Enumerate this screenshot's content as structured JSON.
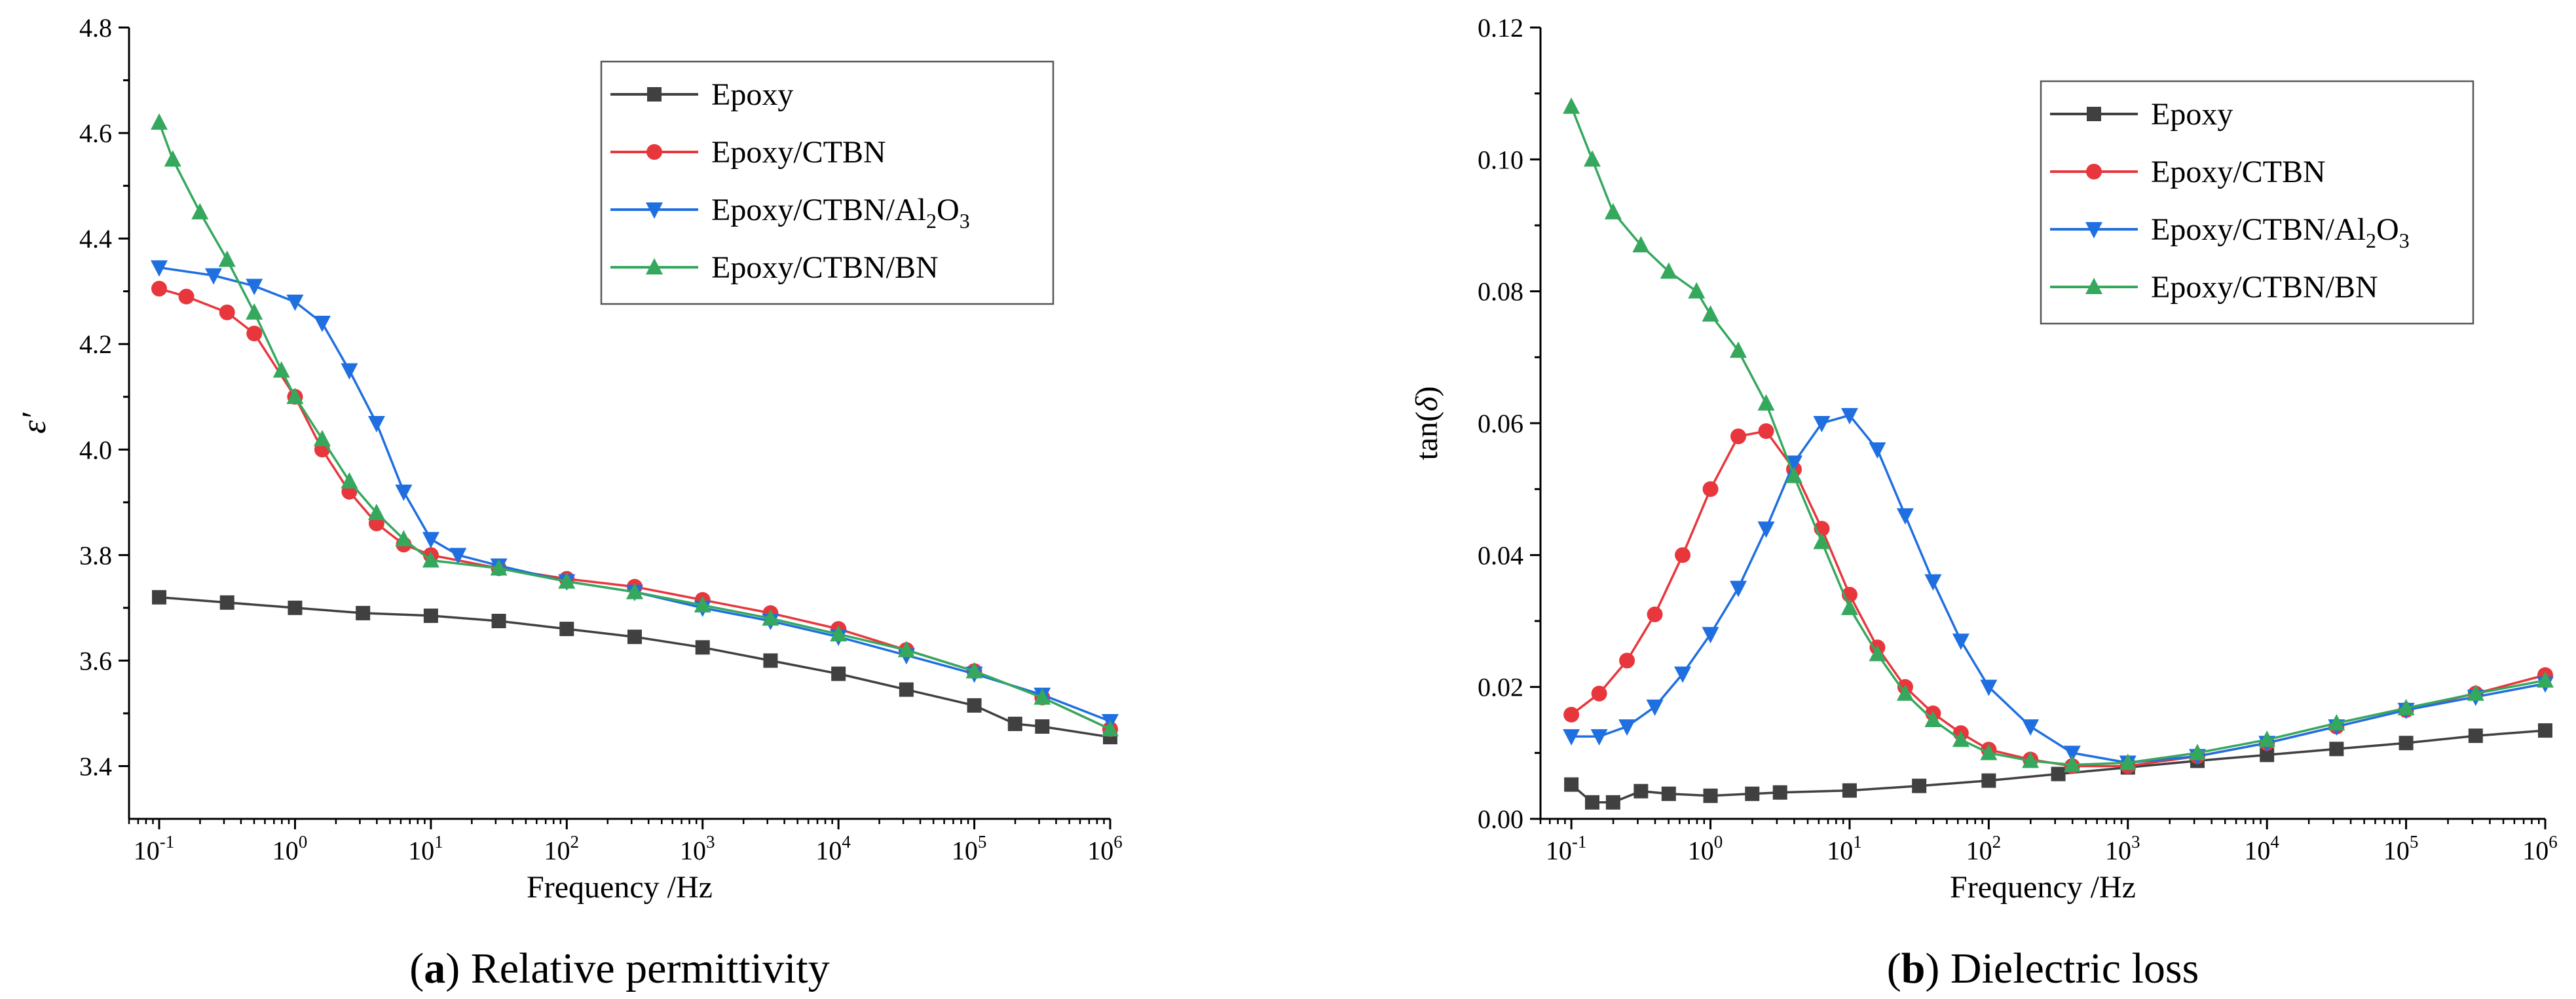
{
  "chart_data": [
    {
      "type": "line",
      "panel_label": "(a)",
      "caption": "Relative permittivity",
      "xlabel": "Frequency /Hz",
      "ylabel": "ε′",
      "xscale": "log",
      "xlim": [
        0.06,
        1000000
      ],
      "ylim": [
        3.3,
        4.8
      ],
      "x_ticks": [
        {
          "exp": "-1",
          "value": 0.1
        },
        {
          "exp": "0",
          "value": 1
        },
        {
          "exp": "1",
          "value": 10
        },
        {
          "exp": "2",
          "value": 100
        },
        {
          "exp": "3",
          "value": 1000
        },
        {
          "exp": "4",
          "value": 10000
        },
        {
          "exp": "5",
          "value": 100000
        },
        {
          "exp": "6",
          "value": 1000000
        }
      ],
      "y_ticks": [
        {
          "label": "3.4",
          "value": 3.4
        },
        {
          "label": "3.6",
          "value": 3.6
        },
        {
          "label": "3.8",
          "value": 3.8
        },
        {
          "label": "4.0",
          "value": 4.0
        },
        {
          "label": "4.2",
          "value": 4.2
        },
        {
          "label": "4.4",
          "value": 4.4
        },
        {
          "label": "4.6",
          "value": 4.6
        },
        {
          "label": "4.8",
          "value": 4.8
        }
      ],
      "legend_position": "top-right",
      "series": [
        {
          "name": "Epoxy",
          "color": "#404040",
          "marker": "square",
          "points": [
            [
              -1,
              3.72
            ],
            [
              -0.5,
              3.71
            ],
            [
              0,
              3.7
            ],
            [
              0.5,
              3.69
            ],
            [
              1,
              3.685
            ],
            [
              1.5,
              3.675
            ],
            [
              2,
              3.66
            ],
            [
              2.5,
              3.645
            ],
            [
              3,
              3.625
            ],
            [
              3.5,
              3.6
            ],
            [
              4,
              3.575
            ],
            [
              4.5,
              3.545
            ],
            [
              5,
              3.515
            ],
            [
              5.3,
              3.48
            ],
            [
              5.5,
              3.475
            ],
            [
              6,
              3.455
            ]
          ]
        },
        {
          "name": "Epoxy/CTBN",
          "color": "#e8363d",
          "marker": "circle",
          "points": [
            [
              -1,
              4.305
            ],
            [
              -0.8,
              4.29
            ],
            [
              -0.5,
              4.26
            ],
            [
              -0.3,
              4.22
            ],
            [
              0,
              4.1
            ],
            [
              0.2,
              4.0
            ],
            [
              0.4,
              3.92
            ],
            [
              0.6,
              3.86
            ],
            [
              0.8,
              3.82
            ],
            [
              1,
              3.8
            ],
            [
              1.5,
              3.775
            ],
            [
              2,
              3.755
            ],
            [
              2.5,
              3.74
            ],
            [
              3,
              3.715
            ],
            [
              3.5,
              3.69
            ],
            [
              4,
              3.66
            ],
            [
              4.5,
              3.62
            ],
            [
              5,
              3.58
            ],
            [
              5.5,
              3.53
            ],
            [
              6,
              3.47
            ]
          ]
        },
        {
          "name": "Epoxy/CTBN/Al2O3",
          "color": "#1f6fe0",
          "marker": "triangle-down",
          "points": [
            [
              -1,
              4.345
            ],
            [
              -0.6,
              4.33
            ],
            [
              -0.3,
              4.31
            ],
            [
              0,
              4.28
            ],
            [
              0.2,
              4.24
            ],
            [
              0.4,
              4.15
            ],
            [
              0.6,
              4.05
            ],
            [
              0.8,
              3.92
            ],
            [
              1,
              3.83
            ],
            [
              1.2,
              3.8
            ],
            [
              1.5,
              3.78
            ],
            [
              2,
              3.75
            ],
            [
              2.5,
              3.73
            ],
            [
              3,
              3.7
            ],
            [
              3.5,
              3.675
            ],
            [
              4,
              3.645
            ],
            [
              4.5,
              3.61
            ],
            [
              5,
              3.575
            ],
            [
              5.5,
              3.535
            ],
            [
              6,
              3.485
            ]
          ]
        },
        {
          "name": "Epoxy/CTBN/BN",
          "color": "#35a85e",
          "marker": "triangle-up",
          "points": [
            [
              -1,
              4.62
            ],
            [
              -0.9,
              4.55
            ],
            [
              -0.7,
              4.45
            ],
            [
              -0.5,
              4.36
            ],
            [
              -0.3,
              4.26
            ],
            [
              -0.1,
              4.15
            ],
            [
              0,
              4.1
            ],
            [
              0.2,
              4.02
            ],
            [
              0.4,
              3.94
            ],
            [
              0.6,
              3.88
            ],
            [
              0.8,
              3.83
            ],
            [
              1,
              3.79
            ],
            [
              1.5,
              3.775
            ],
            [
              2,
              3.75
            ],
            [
              2.5,
              3.73
            ],
            [
              3,
              3.705
            ],
            [
              3.5,
              3.68
            ],
            [
              4,
              3.65
            ],
            [
              4.5,
              3.62
            ],
            [
              5,
              3.58
            ],
            [
              5.5,
              3.53
            ],
            [
              6,
              3.47
            ]
          ]
        }
      ]
    },
    {
      "type": "line",
      "panel_label": "(b)",
      "caption": "Dielectric loss",
      "xlabel": "Frequency /Hz",
      "ylabel": "tan(δ)",
      "xscale": "log",
      "xlim": [
        0.06,
        1000000
      ],
      "ylim": [
        0,
        0.12
      ],
      "x_ticks": [
        {
          "exp": "-1",
          "value": 0.1
        },
        {
          "exp": "0",
          "value": 1
        },
        {
          "exp": "1",
          "value": 10
        },
        {
          "exp": "2",
          "value": 100
        },
        {
          "exp": "3",
          "value": 1000
        },
        {
          "exp": "4",
          "value": 10000
        },
        {
          "exp": "5",
          "value": 100000
        },
        {
          "exp": "6",
          "value": 1000000
        }
      ],
      "y_ticks": [
        {
          "label": "0.00",
          "value": 0
        },
        {
          "label": "0.02",
          "value": 0.02
        },
        {
          "label": "0.04",
          "value": 0.04
        },
        {
          "label": "0.06",
          "value": 0.06
        },
        {
          "label": "0.08",
          "value": 0.08
        },
        {
          "label": "0.10",
          "value": 0.1
        },
        {
          "label": "0.12",
          "value": 0.12
        }
      ],
      "legend_position": "top-right",
      "series": [
        {
          "name": "Epoxy",
          "color": "#404040",
          "marker": "square",
          "points": [
            [
              -1,
              0.0052
            ],
            [
              -0.85,
              0.0025
            ],
            [
              -0.7,
              0.0025
            ],
            [
              -0.5,
              0.0042
            ],
            [
              -0.3,
              0.0038
            ],
            [
              0,
              0.0035
            ],
            [
              0.3,
              0.0038
            ],
            [
              0.5,
              0.004
            ],
            [
              1,
              0.0043
            ],
            [
              1.5,
              0.005
            ],
            [
              2,
              0.0058
            ],
            [
              2.5,
              0.0068
            ],
            [
              3,
              0.0078
            ],
            [
              3.5,
              0.0088
            ],
            [
              4,
              0.0097
            ],
            [
              4.5,
              0.0106
            ],
            [
              5,
              0.0115
            ],
            [
              5.5,
              0.0126
            ],
            [
              6,
              0.0134
            ]
          ]
        },
        {
          "name": "Epoxy/CTBN",
          "color": "#e8363d",
          "marker": "circle",
          "points": [
            [
              -1,
              0.0158
            ],
            [
              -0.8,
              0.019
            ],
            [
              -0.6,
              0.024
            ],
            [
              -0.4,
              0.031
            ],
            [
              -0.2,
              0.04
            ],
            [
              0,
              0.05
            ],
            [
              0.2,
              0.058
            ],
            [
              0.4,
              0.0588
            ],
            [
              0.6,
              0.053
            ],
            [
              0.8,
              0.044
            ],
            [
              1,
              0.034
            ],
            [
              1.2,
              0.026
            ],
            [
              1.4,
              0.02
            ],
            [
              1.6,
              0.016
            ],
            [
              1.8,
              0.013
            ],
            [
              2,
              0.0105
            ],
            [
              2.3,
              0.009
            ],
            [
              2.6,
              0.008
            ],
            [
              3,
              0.008
            ],
            [
              3.5,
              0.0095
            ],
            [
              4,
              0.0115
            ],
            [
              4.5,
              0.014
            ],
            [
              5,
              0.0165
            ],
            [
              5.5,
              0.019
            ],
            [
              6,
              0.0218
            ]
          ]
        },
        {
          "name": "Epoxy/CTBN/Al2O3",
          "color": "#1f6fe0",
          "marker": "triangle-down",
          "points": [
            [
              -1,
              0.0125
            ],
            [
              -0.8,
              0.0125
            ],
            [
              -0.6,
              0.014
            ],
            [
              -0.4,
              0.017
            ],
            [
              -0.2,
              0.022
            ],
            [
              0,
              0.028
            ],
            [
              0.2,
              0.035
            ],
            [
              0.4,
              0.044
            ],
            [
              0.6,
              0.054
            ],
            [
              0.8,
              0.06
            ],
            [
              1,
              0.0612
            ],
            [
              1.2,
              0.056
            ],
            [
              1.4,
              0.046
            ],
            [
              1.6,
              0.036
            ],
            [
              1.8,
              0.027
            ],
            [
              2,
              0.02
            ],
            [
              2.3,
              0.014
            ],
            [
              2.6,
              0.01
            ],
            [
              3,
              0.0085
            ],
            [
              3.5,
              0.0095
            ],
            [
              4,
              0.0115
            ],
            [
              4.5,
              0.014
            ],
            [
              5,
              0.0165
            ],
            [
              5.5,
              0.0185
            ],
            [
              6,
              0.0205
            ]
          ]
        },
        {
          "name": "Epoxy/CTBN/BN",
          "color": "#35a85e",
          "marker": "triangle-up",
          "points": [
            [
              -1,
              0.108
            ],
            [
              -0.85,
              0.1
            ],
            [
              -0.7,
              0.092
            ],
            [
              -0.5,
              0.087
            ],
            [
              -0.3,
              0.083
            ],
            [
              -0.1,
              0.08
            ],
            [
              0,
              0.0765
            ],
            [
              0.2,
              0.071
            ],
            [
              0.4,
              0.063
            ],
            [
              0.6,
              0.052
            ],
            [
              0.8,
              0.042
            ],
            [
              1,
              0.032
            ],
            [
              1.2,
              0.025
            ],
            [
              1.4,
              0.019
            ],
            [
              1.6,
              0.015
            ],
            [
              1.8,
              0.012
            ],
            [
              2,
              0.01
            ],
            [
              2.3,
              0.0088
            ],
            [
              2.6,
              0.0082
            ],
            [
              3,
              0.0085
            ],
            [
              3.5,
              0.01
            ],
            [
              4,
              0.012
            ],
            [
              4.5,
              0.0145
            ],
            [
              5,
              0.0168
            ],
            [
              5.5,
              0.019
            ],
            [
              6,
              0.021
            ]
          ]
        }
      ]
    }
  ],
  "legend_labels": {
    "al2o3_prefix": "Epoxy/CTBN/Al",
    "al2o3_sub1": "2",
    "al2o3_mid": "O",
    "al2o3_sub2": "3"
  },
  "ylabel_main": "ε",
  "ylabel_prime": "′",
  "tan_prefix": "tan(",
  "tan_delta": "δ",
  "tan_suffix": ")",
  "x_tick_base": "10"
}
